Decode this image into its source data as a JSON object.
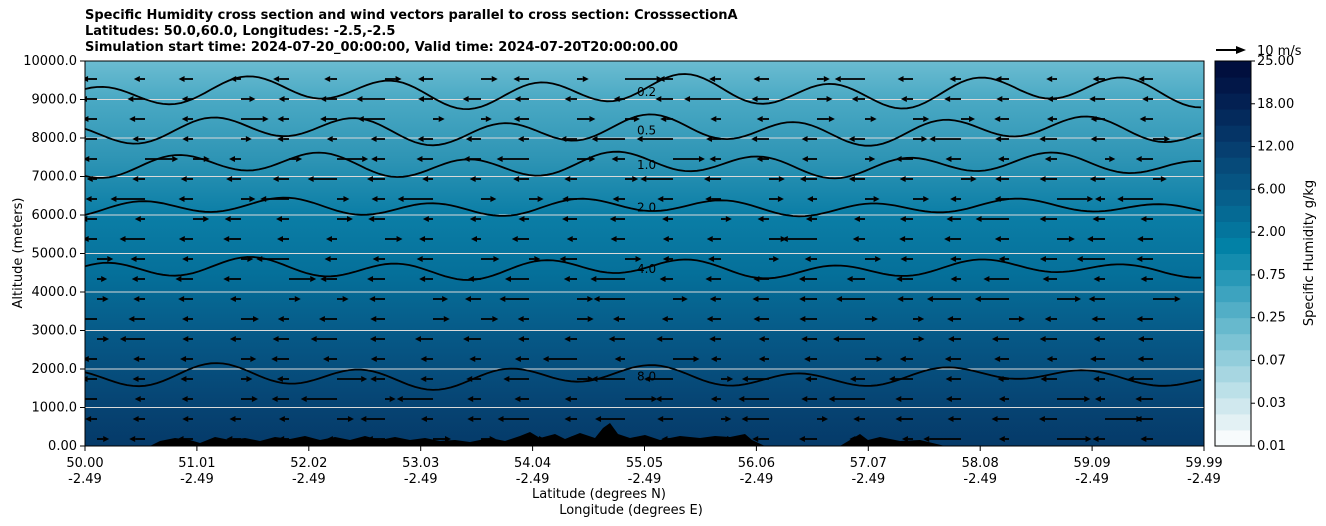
{
  "chart_data": {
    "type": "filled-contour",
    "title": [
      "Specific Humidity cross section and wind vectors parallel to cross section: CrosssectionA",
      "Latitudes: 50.0,60.0, Longitudes: -2.5,-2.5",
      "Simulation start time: 2024-07-20_00:00:00, Valid time: 2024-07-20T20:00:00.00"
    ],
    "ylabel": "Altitude (meters)",
    "xlabel_lat": "Latitude (degrees N)",
    "xlabel_lon": "Longitude (degrees E)",
    "ylim": [
      0,
      10000
    ],
    "yticks": [
      "0.00",
      "1000.0",
      "2000.0",
      "3000.0",
      "4000.0",
      "5000.0",
      "6000.0",
      "7000.0",
      "8000.0",
      "9000.0",
      "10000.0"
    ],
    "xticks_lat": [
      "50.00",
      "51.01",
      "52.02",
      "53.03",
      "54.04",
      "55.05",
      "56.06",
      "57.07",
      "58.08",
      "59.09",
      "59.99"
    ],
    "xticks_lon": [
      "-2.49",
      "-2.49",
      "-2.49",
      "-2.49",
      "-2.49",
      "-2.49",
      "-2.49",
      "-2.49",
      "-2.49",
      "-2.49",
      "-2.49"
    ],
    "colorbar": {
      "label": "Specific Humidity g/kg",
      "ticks": [
        "0.01",
        "0.03",
        "0.07",
        "0.25",
        "0.75",
        "2.00",
        "6.00",
        "12.00",
        "18.00",
        "25.00"
      ],
      "colors": [
        "#f7fbfc",
        "#e3f1f4",
        "#d0e8ee",
        "#bce0e8",
        "#a7d6e1",
        "#92cddb",
        "#7cc3d4",
        "#67b9cd",
        "#52aec6",
        "#3da3bf",
        "#2898b7",
        "#148cae",
        "#0281a6",
        "#04759d",
        "#056a94",
        "#065f8b",
        "#065482",
        "#064a79",
        "#063f70",
        "#053466",
        "#042a5c",
        "#032052",
        "#021748",
        "#010f3e"
      ]
    },
    "contour_labels": [
      "0.2",
      "0.5",
      "1.0",
      "2.0",
      "4.0",
      "8.0"
    ],
    "vector_key": "10 m/s",
    "grid": "horizontal"
  }
}
